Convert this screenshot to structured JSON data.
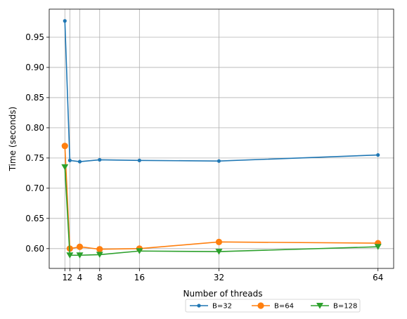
{
  "chart_data": {
    "type": "line",
    "title": "",
    "xlabel": "Number of threads",
    "ylabel": "Time (seconds)",
    "x": [
      1,
      2,
      4,
      8,
      16,
      32,
      64
    ],
    "xticks": [
      1,
      2,
      4,
      8,
      16,
      32,
      64
    ],
    "xlim": [
      -2.15,
      67.15
    ],
    "ylim": [
      0.5672,
      0.9965
    ],
    "yticks": [
      0.6,
      0.65,
      0.7,
      0.75,
      0.8,
      0.85,
      0.9,
      0.95
    ],
    "ytick_labels": [
      "0.60",
      "0.65",
      "0.70",
      "0.75",
      "0.80",
      "0.85",
      "0.90",
      "0.95"
    ],
    "grid": true,
    "legend_placement": "below-right, horizontal",
    "series": [
      {
        "name": "B=32",
        "color": "#1f77b4",
        "marker": "point",
        "values": [
          0.977,
          0.746,
          0.744,
          0.747,
          0.746,
          0.745,
          0.755
        ]
      },
      {
        "name": "B=64",
        "color": "#ff7f0e",
        "marker": "circle",
        "values": [
          0.77,
          0.6,
          0.603,
          0.599,
          0.6,
          0.611,
          0.609
        ]
      },
      {
        "name": "B=128",
        "color": "#2ca02c",
        "marker": "triangle-down",
        "values": [
          0.735,
          0.589,
          0.589,
          0.59,
          0.596,
          0.595,
          0.603
        ]
      }
    ]
  }
}
